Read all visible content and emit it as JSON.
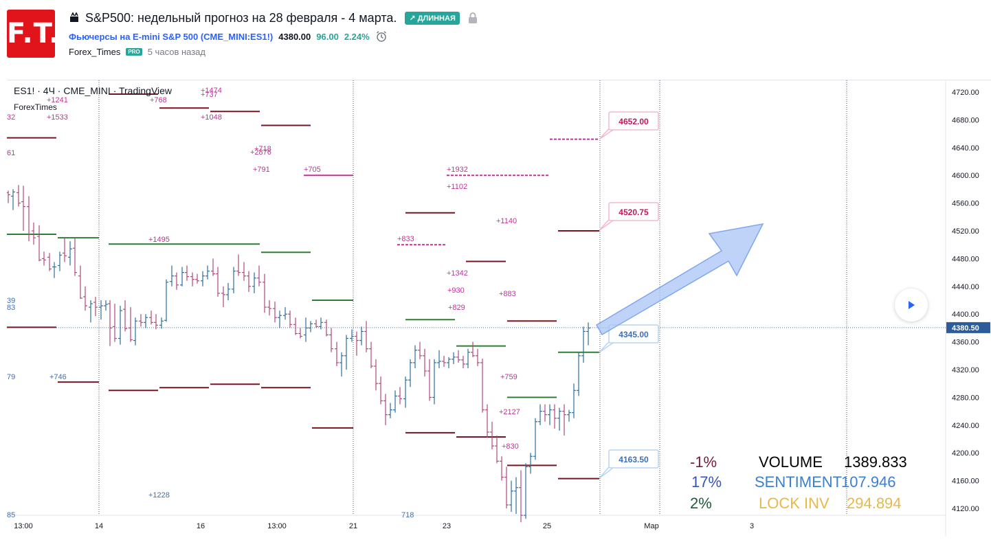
{
  "header": {
    "logo_text": "F.T.",
    "title": "S&P500: недельный прогноз на 28 февраля - 4 марта.",
    "badge": "↗ ДЛИННАЯ",
    "symbol_name": "Фьючерсы на E-mini S&P 500",
    "symbol_code": "(CME_MINI:ES1!)",
    "price": "4380.00",
    "change": "96.00",
    "change_pct": "2.24%",
    "author": "Forex_Times",
    "pro_label": "PRO",
    "time_ago": "5 часов назад"
  },
  "chart": {
    "legend_main": "ES1! · 4Ч · CME_MINI · TradingView",
    "legend_sub": "ForexTimes",
    "current_price_label": "4380.50",
    "callouts": [
      {
        "text": "4652.00",
        "color": "#c2185b"
      },
      {
        "text": "4520.75",
        "color": "#c2185b"
      },
      {
        "text": "4345.00",
        "color": "#3f6fb5"
      },
      {
        "text": "4163.50",
        "color": "#3f6fb5"
      }
    ],
    "stats": [
      {
        "pct": "-1%",
        "pct_color": "#7b1a3a",
        "label": "VOLUME",
        "label_color": "#000000",
        "value": "1389.833",
        "value_color": "#000000"
      },
      {
        "pct": "17%",
        "pct_color": "#3554b8",
        "label": "SENTIMENT",
        "label_color": "#3b7fd0",
        "value": "107.946",
        "value_color": "#3b7fd0"
      },
      {
        "pct": "2%",
        "pct_color": "#1f5a3a",
        "label": "LOCK INV",
        "label_color": "#e8b84a",
        "value": "294.894",
        "value_color": "#e8b84a"
      }
    ],
    "annotations_magenta": [
      "+1241",
      "+1533",
      "+768",
      "+737",
      "+1474",
      "+1048",
      "+718",
      "+2876",
      "+791",
      "+705",
      "+1932",
      "+1102",
      "+1140",
      "+833",
      "+1342",
      "+930",
      "+829",
      "+883",
      "+759",
      "+2127",
      "+830",
      "+1495",
      "32",
      "61"
    ],
    "annotations_blue": [
      "+746",
      "+1228",
      "39",
      "83",
      "79",
      "85",
      "718"
    ]
  },
  "chart_data": {
    "type": "bar",
    "title": "ES1! · 4Ч · CME_MINI · TradingView",
    "y_ticks": [
      "4720.00",
      "4680.00",
      "4640.00",
      "4600.00",
      "4560.00",
      "4520.00",
      "4480.00",
      "4440.00",
      "4400.00",
      "4360.00",
      "4320.00",
      "4280.00",
      "4240.00",
      "4200.00",
      "4160.00",
      "4120.00"
    ],
    "x_ticks": [
      "13:00",
      "14",
      "16",
      "13:00",
      "21",
      "23",
      "25",
      "Мар",
      "3"
    ],
    "ylim": [
      4105,
      4740
    ],
    "last_price": 4380.5,
    "targets": [
      4652.0,
      4520.75,
      4345.0,
      4163.5
    ]
  },
  "colors": {
    "up": "#2c6e9b",
    "down": "#b0487a",
    "level_dark": "#7a1320",
    "level_green": "#2e7d32",
    "level_magenta": "#c2319a",
    "arrow_fill": "#a9c4f5"
  }
}
